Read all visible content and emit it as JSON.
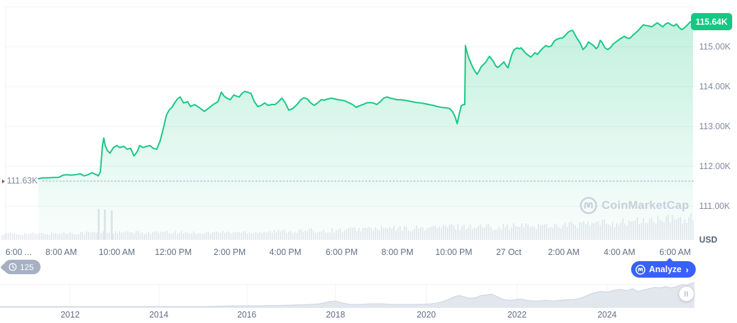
{
  "yaxis": {
    "labels": [
      "115.00K",
      "114.00K",
      "113.00K",
      "112.00K",
      "111.00K"
    ],
    "unit": "USD",
    "current_price_badge": "115.64K",
    "reference_price_label": "111.63K"
  },
  "xaxis": {
    "labels": [
      "6:00 ...",
      "8:00 AM",
      "10:00 AM",
      "12:00 PM",
      "2:00 PM",
      "4:00 PM",
      "6:00 PM",
      "8:00 PM",
      "10:00 PM",
      "27 Oct",
      "2:00 AM",
      "4:00 AM",
      "6:00 AM"
    ]
  },
  "navigator": {
    "years": [
      "2012",
      "2014",
      "2016",
      "2018",
      "2020",
      "2022",
      "2024"
    ],
    "handle_glyph": "||"
  },
  "toolbar": {
    "history_count": "125",
    "analyze_label": "Analyze",
    "analyze_chevron": "›"
  },
  "watermark": {
    "text": "CoinMarketCap"
  },
  "colors": {
    "accent_green": "#16c784",
    "accent_blue": "#3861fb",
    "badge_gray": "#a6b0c3",
    "grid": "#eff2f5",
    "volume_bar": "#e7ebf0",
    "nav_fill": "#e2e6ed",
    "nav_stroke": "#ccd3de",
    "dotted_line": "#b6bfcc"
  },
  "chart_data": {
    "type": "line",
    "unit": "USD",
    "ylim": [
      111000,
      116000
    ],
    "yticks": [
      111000,
      112000,
      113000,
      114000,
      115000
    ],
    "y_gridline_values": [
      111,
      112,
      113,
      114,
      115,
      116
    ],
    "current_price": 115640,
    "reference_price": 111630,
    "legend_position": "none",
    "grid": "horizontal",
    "points": [
      [
        56,
        111.69
      ],
      [
        62,
        111.71
      ],
      [
        70,
        111.71
      ],
      [
        78,
        111.72
      ],
      [
        85,
        111.72
      ],
      [
        92,
        111.78
      ],
      [
        97,
        111.79
      ],
      [
        103,
        111.78
      ],
      [
        110,
        111.79
      ],
      [
        117,
        111.81
      ],
      [
        122,
        111.76
      ],
      [
        128,
        111.79
      ],
      [
        134,
        111.84
      ],
      [
        140,
        111.79
      ],
      [
        143,
        111.76
      ],
      [
        146,
        111.86
      ],
      [
        149,
        112.52
      ],
      [
        151,
        112.71
      ],
      [
        153,
        112.52
      ],
      [
        156,
        112.4
      ],
      [
        160,
        112.33
      ],
      [
        165,
        112.47
      ],
      [
        170,
        112.52
      ],
      [
        174,
        112.47
      ],
      [
        180,
        112.5
      ],
      [
        185,
        112.43
      ],
      [
        190,
        112.45
      ],
      [
        195,
        112.26
      ],
      [
        200,
        112.38
      ],
      [
        203,
        112.52
      ],
      [
        208,
        112.47
      ],
      [
        213,
        112.5
      ],
      [
        218,
        112.52
      ],
      [
        223,
        112.45
      ],
      [
        228,
        112.43
      ],
      [
        233,
        112.64
      ],
      [
        238,
        112.98
      ],
      [
        242,
        113.28
      ],
      [
        246,
        113.41
      ],
      [
        250,
        113.48
      ],
      [
        254,
        113.59
      ],
      [
        258,
        113.69
      ],
      [
        262,
        113.74
      ],
      [
        267,
        113.59
      ],
      [
        273,
        113.62
      ],
      [
        277,
        113.5
      ],
      [
        283,
        113.55
      ],
      [
        290,
        113.47
      ],
      [
        297,
        113.38
      ],
      [
        303,
        113.45
      ],
      [
        310,
        113.55
      ],
      [
        317,
        113.62
      ],
      [
        322,
        113.86
      ],
      [
        326,
        113.76
      ],
      [
        330,
        113.71
      ],
      [
        335,
        113.67
      ],
      [
        340,
        113.79
      ],
      [
        344,
        113.76
      ],
      [
        348,
        113.74
      ],
      [
        352,
        113.83
      ],
      [
        356,
        113.88
      ],
      [
        360,
        113.86
      ],
      [
        365,
        113.83
      ],
      [
        370,
        113.62
      ],
      [
        375,
        113.5
      ],
      [
        380,
        113.53
      ],
      [
        385,
        113.59
      ],
      [
        390,
        113.53
      ],
      [
        395,
        113.55
      ],
      [
        400,
        113.55
      ],
      [
        405,
        113.62
      ],
      [
        410,
        113.71
      ],
      [
        415,
        113.59
      ],
      [
        420,
        113.41
      ],
      [
        426,
        113.45
      ],
      [
        432,
        113.55
      ],
      [
        437,
        113.66
      ],
      [
        442,
        113.72
      ],
      [
        447,
        113.69
      ],
      [
        452,
        113.59
      ],
      [
        457,
        113.53
      ],
      [
        462,
        113.59
      ],
      [
        467,
        113.67
      ],
      [
        472,
        113.66
      ],
      [
        477,
        113.69
      ],
      [
        482,
        113.71
      ],
      [
        487,
        113.69
      ],
      [
        492,
        113.67
      ],
      [
        497,
        113.66
      ],
      [
        502,
        113.64
      ],
      [
        508,
        113.59
      ],
      [
        513,
        113.55
      ],
      [
        518,
        113.48
      ],
      [
        523,
        113.52
      ],
      [
        528,
        113.55
      ],
      [
        533,
        113.59
      ],
      [
        538,
        113.6
      ],
      [
        543,
        113.59
      ],
      [
        548,
        113.55
      ],
      [
        553,
        113.62
      ],
      [
        558,
        113.71
      ],
      [
        563,
        113.74
      ],
      [
        568,
        113.71
      ],
      [
        573,
        113.69
      ],
      [
        578,
        113.67
      ],
      [
        583,
        113.67
      ],
      [
        588,
        113.66
      ],
      [
        594,
        113.64
      ],
      [
        600,
        113.62
      ],
      [
        606,
        113.6
      ],
      [
        612,
        113.59
      ],
      [
        618,
        113.57
      ],
      [
        624,
        113.55
      ],
      [
        630,
        113.53
      ],
      [
        636,
        113.5
      ],
      [
        642,
        113.48
      ],
      [
        648,
        113.47
      ],
      [
        654,
        113.45
      ],
      [
        658,
        113.38
      ],
      [
        662,
        113.24
      ],
      [
        665,
        113.07
      ],
      [
        668,
        113.31
      ],
      [
        671,
        113.52
      ],
      [
        674,
        113.55
      ],
      [
        676,
        113.55
      ],
      [
        677,
        115.03
      ],
      [
        679,
        114.88
      ],
      [
        682,
        114.71
      ],
      [
        685,
        114.59
      ],
      [
        688,
        114.47
      ],
      [
        691,
        114.38
      ],
      [
        694,
        114.31
      ],
      [
        697,
        114.4
      ],
      [
        700,
        114.5
      ],
      [
        703,
        114.55
      ],
      [
        707,
        114.62
      ],
      [
        710,
        114.71
      ],
      [
        712,
        114.76
      ],
      [
        715,
        114.69
      ],
      [
        718,
        114.62
      ],
      [
        721,
        114.52
      ],
      [
        724,
        114.48
      ],
      [
        727,
        114.52
      ],
      [
        730,
        114.57
      ],
      [
        733,
        114.62
      ],
      [
        736,
        114.53
      ],
      [
        739,
        114.47
      ],
      [
        742,
        114.66
      ],
      [
        745,
        114.83
      ],
      [
        748,
        114.93
      ],
      [
        752,
        114.97
      ],
      [
        755,
        114.95
      ],
      [
        758,
        114.97
      ],
      [
        761,
        114.91
      ],
      [
        764,
        114.85
      ],
      [
        768,
        114.79
      ],
      [
        772,
        114.74
      ],
      [
        775,
        114.79
      ],
      [
        778,
        114.85
      ],
      [
        782,
        114.81
      ],
      [
        786,
        114.9
      ],
      [
        790,
        114.97
      ],
      [
        794,
        115.03
      ],
      [
        798,
        115.0
      ],
      [
        802,
        115.02
      ],
      [
        806,
        115.14
      ],
      [
        810,
        115.19
      ],
      [
        814,
        115.21
      ],
      [
        818,
        115.22
      ],
      [
        822,
        115.28
      ],
      [
        826,
        115.36
      ],
      [
        830,
        115.4
      ],
      [
        833,
        115.41
      ],
      [
        836,
        115.31
      ],
      [
        840,
        115.19
      ],
      [
        844,
        115.09
      ],
      [
        848,
        114.93
      ],
      [
        852,
        115.0
      ],
      [
        856,
        115.12
      ],
      [
        860,
        115.07
      ],
      [
        864,
        115.02
      ],
      [
        867,
        114.95
      ],
      [
        870,
        115.0
      ],
      [
        873,
        115.16
      ],
      [
        876,
        115.1
      ],
      [
        880,
        114.97
      ],
      [
        884,
        114.93
      ],
      [
        888,
        114.98
      ],
      [
        892,
        115.07
      ],
      [
        896,
        115.12
      ],
      [
        900,
        115.17
      ],
      [
        904,
        115.22
      ],
      [
        908,
        115.26
      ],
      [
        912,
        115.22
      ],
      [
        916,
        115.21
      ],
      [
        920,
        115.28
      ],
      [
        924,
        115.34
      ],
      [
        928,
        115.4
      ],
      [
        932,
        115.48
      ],
      [
        936,
        115.55
      ],
      [
        940,
        115.53
      ],
      [
        944,
        115.52
      ],
      [
        948,
        115.5
      ],
      [
        952,
        115.55
      ],
      [
        956,
        115.6
      ],
      [
        960,
        115.55
      ],
      [
        964,
        115.5
      ],
      [
        968,
        115.57
      ],
      [
        972,
        115.6
      ],
      [
        976,
        115.55
      ],
      [
        980,
        115.52
      ],
      [
        984,
        115.57
      ],
      [
        988,
        115.48
      ],
      [
        992,
        115.43
      ],
      [
        996,
        115.48
      ],
      [
        1000,
        115.55
      ],
      [
        1004,
        115.62
      ],
      [
        1008,
        115.64
      ]
    ],
    "volume_profile": [
      [
        2,
        9
      ],
      [
        60,
        9
      ],
      [
        120,
        11
      ],
      [
        180,
        11
      ],
      [
        240,
        11
      ],
      [
        300,
        11
      ],
      [
        360,
        12
      ],
      [
        420,
        13
      ],
      [
        480,
        14
      ],
      [
        540,
        17
      ],
      [
        600,
        17
      ],
      [
        660,
        20
      ],
      [
        720,
        20
      ],
      [
        780,
        21
      ],
      [
        840,
        23
      ],
      [
        900,
        26
      ],
      [
        950,
        29
      ],
      [
        1000,
        32
      ],
      [
        1008,
        33
      ]
    ],
    "volume_spikes": [
      [
        143,
        45
      ],
      [
        152,
        44
      ],
      [
        162,
        43
      ]
    ],
    "navigator_points": [
      [
        0,
        2
      ],
      [
        60,
        2
      ],
      [
        120,
        2
      ],
      [
        180,
        2
      ],
      [
        240,
        2
      ],
      [
        300,
        2
      ],
      [
        340,
        3
      ],
      [
        380,
        3
      ],
      [
        420,
        4
      ],
      [
        450,
        5
      ],
      [
        465,
        6
      ],
      [
        478,
        9
      ],
      [
        488,
        10
      ],
      [
        498,
        7
      ],
      [
        510,
        5
      ],
      [
        525,
        5
      ],
      [
        540,
        6
      ],
      [
        555,
        6
      ],
      [
        570,
        5
      ],
      [
        590,
        5
      ],
      [
        610,
        5
      ],
      [
        628,
        6
      ],
      [
        640,
        8
      ],
      [
        652,
        12
      ],
      [
        660,
        16
      ],
      [
        668,
        18
      ],
      [
        676,
        16
      ],
      [
        684,
        14
      ],
      [
        692,
        15
      ],
      [
        700,
        18
      ],
      [
        708,
        19
      ],
      [
        715,
        20
      ],
      [
        722,
        17
      ],
      [
        730,
        13
      ],
      [
        740,
        11
      ],
      [
        750,
        12
      ],
      [
        758,
        13
      ],
      [
        766,
        11
      ],
      [
        774,
        10
      ],
      [
        784,
        10
      ],
      [
        794,
        11
      ],
      [
        804,
        10
      ],
      [
        814,
        11
      ],
      [
        824,
        12
      ],
      [
        834,
        12
      ],
      [
        844,
        14
      ],
      [
        854,
        18
      ],
      [
        864,
        22
      ],
      [
        874,
        24
      ],
      [
        884,
        23
      ],
      [
        894,
        26
      ],
      [
        904,
        27
      ],
      [
        912,
        25
      ],
      [
        920,
        28
      ],
      [
        928,
        24
      ],
      [
        936,
        26
      ],
      [
        944,
        28
      ],
      [
        952,
        30
      ],
      [
        960,
        29
      ],
      [
        968,
        31
      ],
      [
        976,
        29
      ],
      [
        984,
        31
      ],
      [
        992,
        34
      ],
      [
        1000,
        33
      ],
      [
        1006,
        36
      ],
      [
        1010,
        37
      ]
    ]
  }
}
